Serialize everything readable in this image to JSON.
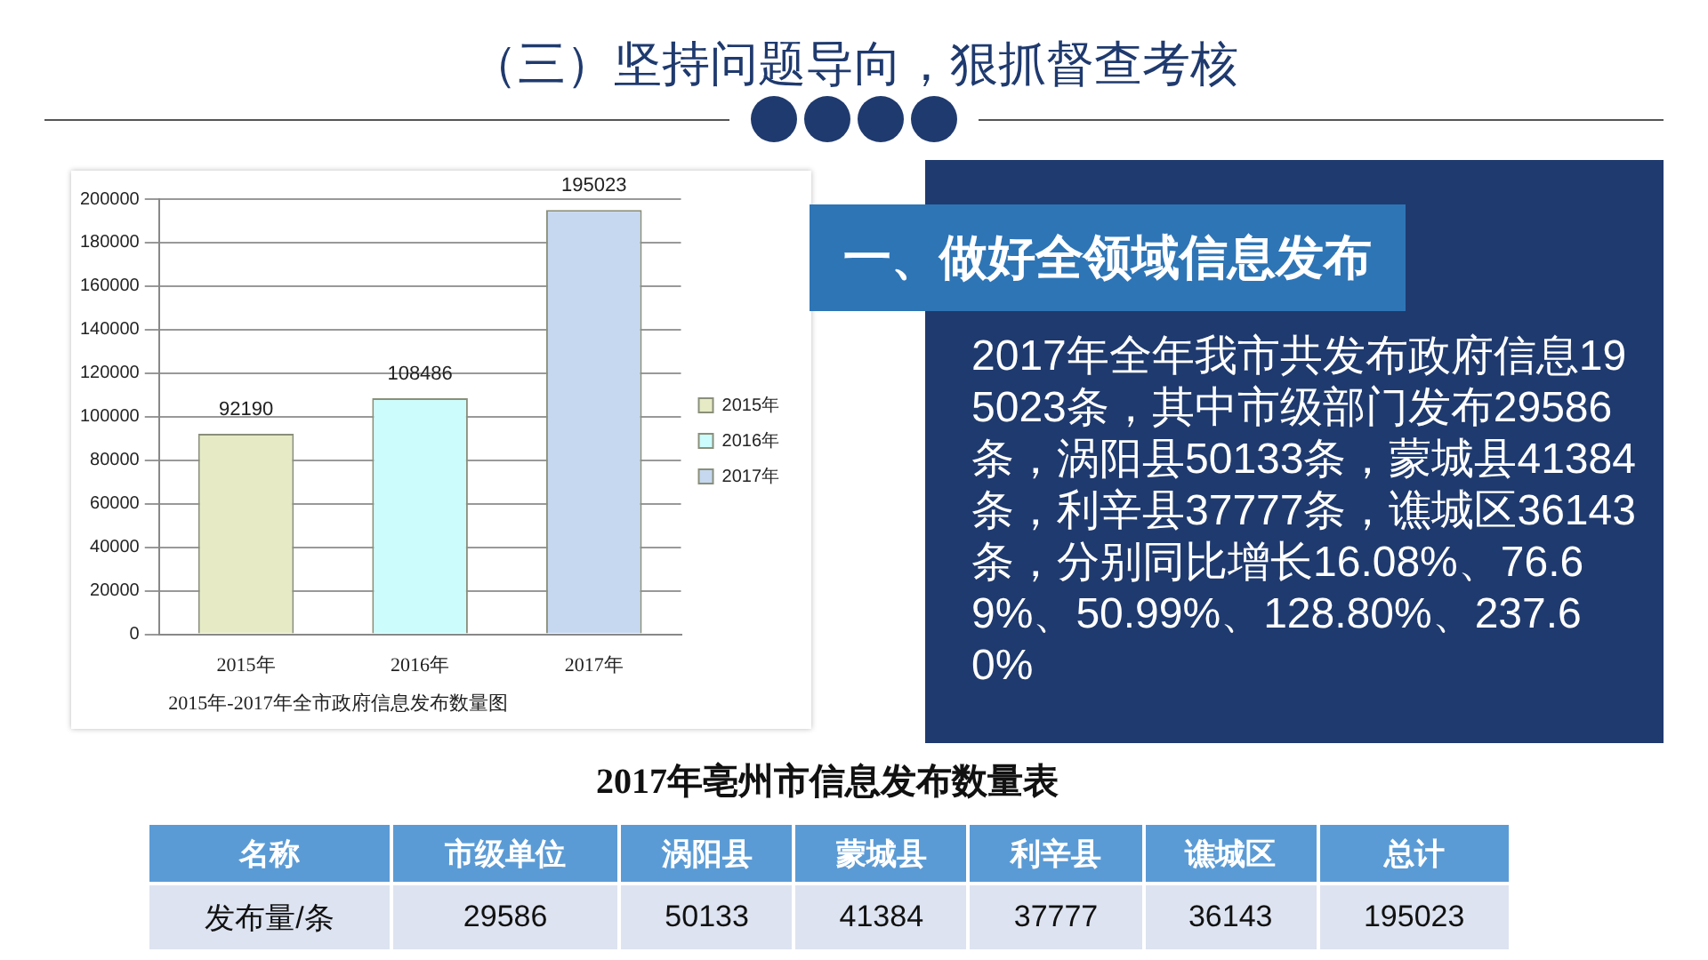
{
  "chart_data": [
    {
      "type": "bar",
      "title": "（三）坚持问题导向，狠抓督查考核",
      "categories": [
        "2015年",
        "2016年",
        "2017年"
      ],
      "series": [
        {
          "name": "2015年",
          "color": "#e6ebc6",
          "values": [
            92190,
            null,
            null
          ]
        },
        {
          "name": "2016年",
          "color": "#ccfcfc",
          "values": [
            null,
            108486,
            null
          ]
        },
        {
          "name": "2017年",
          "color": "#c6d8f0",
          "values": [
            null,
            null,
            195023
          ]
        }
      ],
      "ylim": [
        0,
        200000
      ],
      "yticks": [
        0,
        20000,
        40000,
        60000,
        80000,
        100000,
        120000,
        140000,
        160000,
        180000,
        200000
      ],
      "grid": "y",
      "legend": "right",
      "data_labels": true,
      "annotations": [
        "2015年-2017年全市政府信息发布数量图"
      ]
    },
    {
      "type": "other",
      "title": "一、做好全领域信息发布",
      "annotations": [
        "2017年全年我市共发布政府信息195023条，其中市级部门发布29586条，涡阳县50133条，蒙城县41384条，利辛县37777条，谯城区36143条，分别同比增长16.08%、76.69%、50.99%、128.80%、237.60%"
      ]
    },
    {
      "type": "other",
      "title": "2017年亳州市信息发布数量表",
      "xlabel": "名称",
      "ylabel": "发布量/条",
      "categories": [
        "市级单位",
        "涡阳县",
        "蒙城县",
        "利辛县",
        "谯城区",
        "总计"
      ],
      "values": [
        29586,
        50133,
        41384,
        37777,
        36143,
        195023
      ],
      "data_labels": true
    }
  ]
}
